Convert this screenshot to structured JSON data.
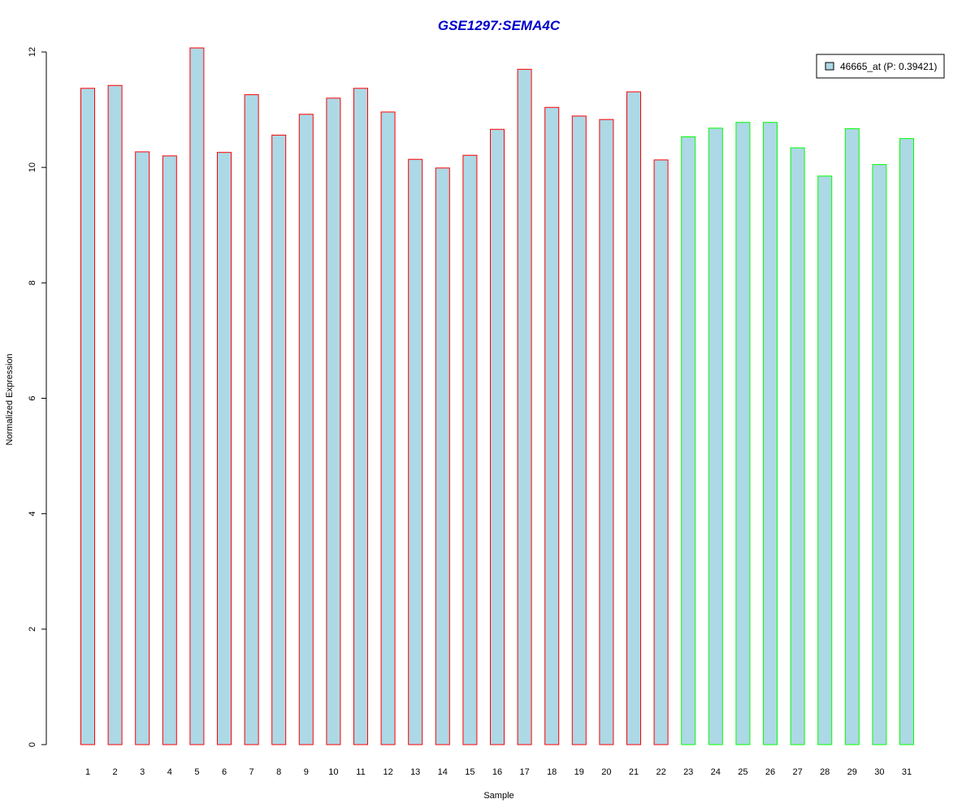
{
  "chart_data": {
    "type": "bar",
    "title": "GSE1297:SEMA4C",
    "xlabel": "Sample",
    "ylabel": "Normalized Expression",
    "ylim": [
      0,
      12
    ],
    "yticks": [
      0,
      2,
      4,
      6,
      8,
      10,
      12
    ],
    "categories": [
      "1",
      "2",
      "3",
      "4",
      "5",
      "6",
      "7",
      "8",
      "9",
      "10",
      "11",
      "12",
      "13",
      "14",
      "15",
      "16",
      "17",
      "18",
      "19",
      "20",
      "21",
      "22",
      "23",
      "24",
      "25",
      "26",
      "27",
      "28",
      "29",
      "30",
      "31"
    ],
    "series": [
      {
        "name": "46665_at (P: 0.39421)",
        "values": [
          11.37,
          11.42,
          10.27,
          10.2,
          12.07,
          10.26,
          11.26,
          10.56,
          10.92,
          11.2,
          11.37,
          10.96,
          10.14,
          9.99,
          10.21,
          10.66,
          11.7,
          11.04,
          10.89,
          10.83,
          11.31,
          10.13,
          10.53,
          10.68,
          10.78,
          10.78,
          10.34,
          9.85,
          10.67,
          10.05,
          10.5
        ]
      }
    ],
    "groups": [
      {
        "samples_from": 1,
        "samples_to": 22,
        "border_color": "#ff0000"
      },
      {
        "samples_from": 23,
        "samples_to": 31,
        "border_color": "#00ff00"
      }
    ],
    "bar_fill": "#add8e6",
    "title_color": "#0000cc",
    "legend_placement": "top-right",
    "grid": false
  }
}
